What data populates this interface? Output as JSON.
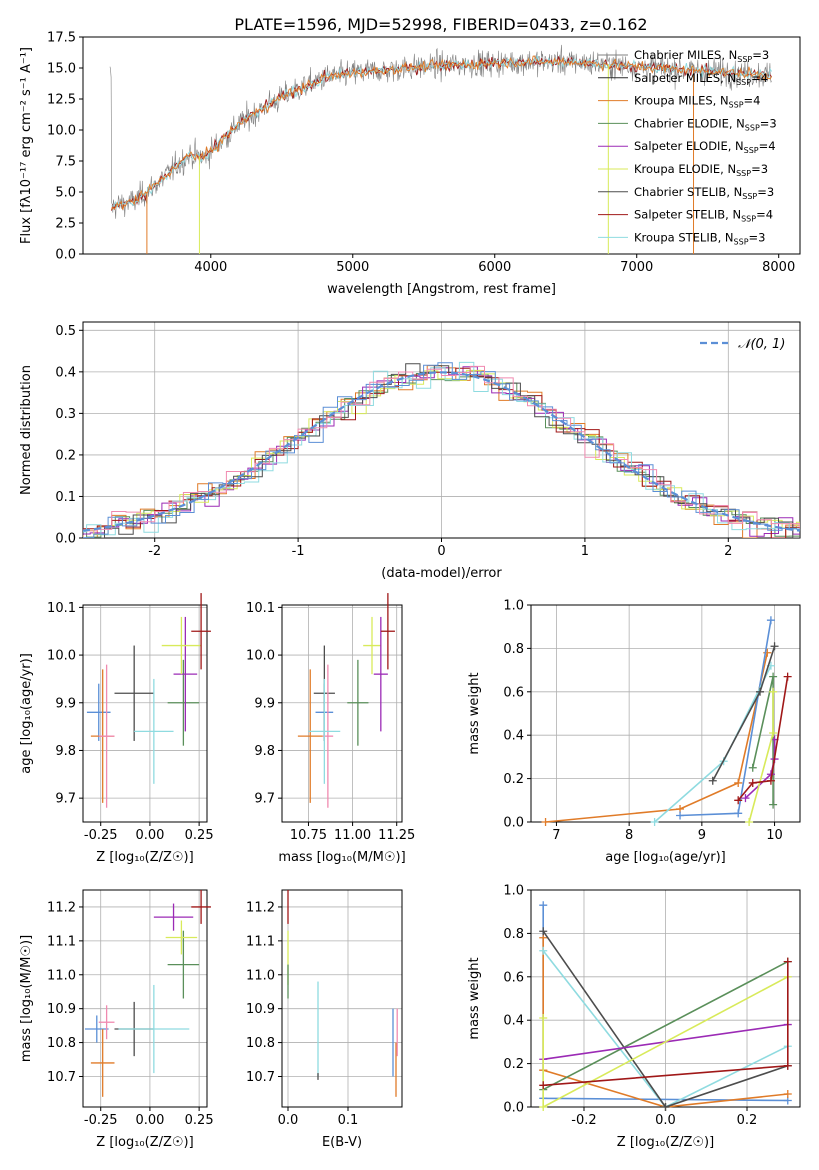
{
  "figure": {
    "title": "PLATE=1596, MJD=52998, FIBERID=0433, z=0.162"
  },
  "colors": {
    "chabrier_miles": "#808080",
    "salpeter_miles": "#2b2b2b",
    "kroupa_miles": "#e07b28",
    "chabrier_elodie": "#5a8f5a",
    "salpeter_elodie": "#9b2ab5",
    "kroupa_elodie": "#d8ea5a",
    "chabrier_stelib": "#4d4d4d",
    "salpeter_stelib": "#a01818",
    "kroupa_stelib": "#8fdbe0",
    "gauss": "#5b8fd6",
    "blue": "#5b8fd6",
    "pink": "#f08ab0",
    "grid": "#b0b0b0"
  },
  "chart_data": [
    {
      "id": "spectrum",
      "type": "line",
      "title": "PLATE=1596, MJD=52998, FIBERID=0433, z=0.162",
      "xlabel": "wavelength [Angstrom, rest frame]",
      "ylabel": "Flux [fλ10⁻¹⁷ erg cm⁻² s⁻¹ A⁻¹]",
      "xlim": [
        3100,
        8150
      ],
      "ylim": [
        0,
        17.5
      ],
      "xticks": [
        4000,
        5000,
        6000,
        7000,
        8000
      ],
      "yticks": [
        0.0,
        2.5,
        5.0,
        7.5,
        10.0,
        12.5,
        15.0,
        17.5
      ],
      "grid": false,
      "legend_position": "right",
      "continuum": {
        "x": [
          3300,
          3450,
          3550,
          3700,
          3850,
          3950,
          4050,
          4200,
          4400,
          4600,
          4800,
          5000,
          5200,
          5400,
          5600,
          5800,
          6000,
          6200,
          6500,
          6800,
          7000,
          7300,
          7600,
          7900
        ],
        "y": [
          3.8,
          4.2,
          5.0,
          6.5,
          8.0,
          7.8,
          8.8,
          10.5,
          12.0,
          13.2,
          14.2,
          14.6,
          14.8,
          15.0,
          15.2,
          15.3,
          15.4,
          15.5,
          15.5,
          15.3,
          15.1,
          14.9,
          14.7,
          14.4
        ]
      },
      "series": [
        {
          "name": "Chabrier MILES, N_SSP=3",
          "legend": "Chabrier MILES, N",
          "n": "=3",
          "color_key": "chabrier_miles"
        },
        {
          "name": "Salpeter MILES, N_SSP=4",
          "legend": "Salpeter MILES, N",
          "n": "=4",
          "color_key": "salpeter_miles"
        },
        {
          "name": "Kroupa MILES, N_SSP=4",
          "legend": "Kroupa MILES, N",
          "n": "=4",
          "color_key": "kroupa_miles"
        },
        {
          "name": "Chabrier ELODIE, N_SSP=3",
          "legend": "Chabrier ELODIE, N",
          "n": "=3",
          "color_key": "chabrier_elodie"
        },
        {
          "name": "Salpeter ELODIE, N_SSP=4",
          "legend": "Salpeter ELODIE, N",
          "n": "=4",
          "color_key": "salpeter_elodie"
        },
        {
          "name": "Kroupa ELODIE, N_SSP=3",
          "legend": "Kroupa ELODIE, N",
          "n": "=3",
          "color_key": "kroupa_elodie"
        },
        {
          "name": "Chabrier STELIB, N_SSP=3",
          "legend": "Chabrier STELIB, N",
          "n": "=3",
          "color_key": "chabrier_stelib"
        },
        {
          "name": "Salpeter STELIB, N_SSP=4",
          "legend": "Salpeter STELIB, N",
          "n": "=4",
          "color_key": "salpeter_stelib"
        },
        {
          "name": "Kroupa STELIB, N_SSP=3",
          "legend": "Kroupa STELIB, N",
          "n": "=3",
          "color_key": "kroupa_stelib"
        }
      ],
      "legend_sub": "SSP"
    },
    {
      "id": "residuals",
      "type": "line",
      "xlabel": "(data-model)/error",
      "ylabel": "Normed distribution",
      "xlim": [
        -2.5,
        2.5
      ],
      "ylim": [
        0,
        0.52
      ],
      "xticks": [
        -2,
        -1,
        0,
        1,
        2
      ],
      "yticks": [
        0.0,
        0.1,
        0.2,
        0.3,
        0.4,
        0.5
      ],
      "grid": true,
      "legend": {
        "name": "𝒩(0, 1)",
        "position": "top-right"
      }
    },
    {
      "id": "age_vs_Z",
      "type": "scatter",
      "xlabel": "Z [log₁₀(Z/Z☉)]",
      "ylabel": "age  [log₁₀(age/yr)]",
      "xlim": [
        -0.34,
        0.29
      ],
      "ylim": [
        9.65,
        10.105
      ],
      "xticks": [
        -0.25,
        0.0,
        0.25
      ],
      "yticks": [
        9.7,
        9.8,
        9.9,
        10.0,
        10.1
      ],
      "grid": true,
      "points": [
        {
          "color_key": "blue",
          "x": -0.26,
          "y": 9.88,
          "xerr": 0.06,
          "yerr": 0.06
        },
        {
          "color_key": "kroupa_miles",
          "x": -0.24,
          "y": 9.83,
          "xerr": 0.06,
          "yerr": 0.14
        },
        {
          "color_key": "pink",
          "x": -0.22,
          "y": 9.83,
          "xerr": 0.04,
          "yerr": 0.15
        },
        {
          "color_key": "chabrier_stelib",
          "x": -0.08,
          "y": 9.92,
          "xerr": 0.1,
          "yerr": 0.1
        },
        {
          "color_key": "kroupa_stelib",
          "x": 0.02,
          "y": 9.84,
          "xerr": 0.1,
          "yerr": 0.11
        },
        {
          "color_key": "chabrier_elodie",
          "x": 0.17,
          "y": 9.9,
          "xerr": 0.08,
          "yerr": 0.09
        },
        {
          "color_key": "salpeter_elodie",
          "x": 0.18,
          "y": 9.96,
          "xerr": 0.06,
          "yerr": 0.12
        },
        {
          "color_key": "kroupa_elodie",
          "x": 0.16,
          "y": 10.02,
          "xerr": 0.1,
          "yerr": 0.06
        },
        {
          "color_key": "salpeter_stelib",
          "x": 0.26,
          "y": 10.05,
          "xerr": 0.05,
          "yerr": 0.08
        }
      ]
    },
    {
      "id": "age_vs_mass",
      "type": "scatter",
      "xlabel": "mass [log₁₀(M/M☉)]",
      "xlim": [
        10.6,
        11.28
      ],
      "ylim": [
        9.65,
        10.105
      ],
      "xticks": [
        10.75,
        11.0,
        11.25
      ],
      "yticks": [
        9.7,
        9.8,
        9.9,
        10.0,
        10.1
      ],
      "grid": true,
      "points": [
        {
          "color_key": "kroupa_miles",
          "x": 10.76,
          "y": 9.83,
          "xerr": 0.07,
          "yerr": 0.14
        },
        {
          "color_key": "blue",
          "x": 10.84,
          "y": 9.88,
          "xerr": 0.05,
          "yerr": 0.06
        },
        {
          "color_key": "chabrier_stelib",
          "x": 10.84,
          "y": 9.92,
          "xerr": 0.06,
          "yerr": 0.1
        },
        {
          "color_key": "pink",
          "x": 10.86,
          "y": 9.83,
          "xerr": 0.03,
          "yerr": 0.15
        },
        {
          "color_key": "kroupa_stelib",
          "x": 10.84,
          "y": 9.84,
          "xerr": 0.09,
          "yerr": 0.11
        },
        {
          "color_key": "chabrier_elodie",
          "x": 11.03,
          "y": 9.9,
          "xerr": 0.06,
          "yerr": 0.09
        },
        {
          "color_key": "kroupa_elodie",
          "x": 11.11,
          "y": 10.02,
          "xerr": 0.05,
          "yerr": 0.06
        },
        {
          "color_key": "salpeter_elodie",
          "x": 11.16,
          "y": 9.96,
          "xerr": 0.04,
          "yerr": 0.12
        },
        {
          "color_key": "salpeter_stelib",
          "x": 11.2,
          "y": 10.05,
          "xerr": 0.04,
          "yerr": 0.08
        }
      ]
    },
    {
      "id": "weight_vs_age",
      "type": "line",
      "xlabel": "age  [log₁₀(age/yr)]",
      "ylabel": "mass weight",
      "xlim": [
        6.65,
        10.35
      ],
      "ylim": [
        0,
        1.0
      ],
      "xticks": [
        7,
        8,
        9,
        10
      ],
      "yticks": [
        0.0,
        0.2,
        0.4,
        0.6,
        0.8,
        1.0
      ],
      "grid": true,
      "series": [
        {
          "color_key": "kroupa_miles",
          "x": [
            6.85,
            8.7,
            9.5,
            9.9
          ],
          "y": [
            0.0,
            0.06,
            0.18,
            0.78
          ]
        },
        {
          "color_key": "blue",
          "x": [
            8.7,
            9.5,
            9.95
          ],
          "y": [
            0.03,
            0.04,
            0.93
          ]
        },
        {
          "color_key": "kroupa_stelib",
          "x": [
            8.35,
            9.3,
            9.95
          ],
          "y": [
            0.0,
            0.28,
            0.72
          ]
        },
        {
          "color_key": "chabrier_stelib",
          "x": [
            9.15,
            9.8,
            10.0
          ],
          "y": [
            0.19,
            0.6,
            0.81
          ]
        },
        {
          "color_key": "chabrier_elodie",
          "x": [
            9.7,
            9.98,
            9.98
          ],
          "y": [
            0.25,
            0.67,
            0.08
          ]
        },
        {
          "color_key": "salpeter_elodie",
          "x": [
            9.6,
            9.95,
            10.0,
            10.0
          ],
          "y": [
            0.11,
            0.22,
            0.29,
            0.38
          ]
        },
        {
          "color_key": "kroupa_elodie",
          "x": [
            9.65,
            9.98,
            9.98
          ],
          "y": [
            0.0,
            0.41,
            0.6
          ]
        },
        {
          "color_key": "salpeter_stelib",
          "x": [
            9.5,
            9.7,
            9.95,
            10.18
          ],
          "y": [
            0.1,
            0.18,
            0.19,
            0.67
          ]
        }
      ]
    },
    {
      "id": "mass_vs_Z",
      "type": "scatter",
      "xlabel": "Z [log₁₀(Z/Z☉)]",
      "ylabel": "mass [log₁₀(M/M☉)]",
      "xlim": [
        -0.34,
        0.29
      ],
      "ylim": [
        10.61,
        11.25
      ],
      "xticks": [
        -0.25,
        0.0,
        0.25
      ],
      "yticks": [
        10.7,
        10.8,
        10.9,
        11.0,
        11.1,
        11.2
      ],
      "grid": true,
      "points": [
        {
          "color_key": "blue",
          "x": -0.27,
          "y": 10.84,
          "xerr": 0.06,
          "yerr": 0.04
        },
        {
          "color_key": "kroupa_miles",
          "x": -0.24,
          "y": 10.74,
          "xerr": 0.06,
          "yerr": 0.1
        },
        {
          "color_key": "pink",
          "x": -0.22,
          "y": 10.86,
          "xerr": 0.04,
          "yerr": 0.05
        },
        {
          "color_key": "chabrier_stelib",
          "x": -0.08,
          "y": 10.84,
          "xerr": 0.1,
          "yerr": 0.08
        },
        {
          "color_key": "kroupa_stelib",
          "x": 0.02,
          "y": 10.84,
          "xerr": 0.18,
          "yerr": 0.13
        },
        {
          "color_key": "chabrier_elodie",
          "x": 0.17,
          "y": 11.03,
          "xerr": 0.08,
          "yerr": 0.1
        },
        {
          "color_key": "salpeter_elodie",
          "x": 0.12,
          "y": 11.17,
          "xerr": 0.1,
          "yerr": 0.04
        },
        {
          "color_key": "kroupa_elodie",
          "x": 0.16,
          "y": 11.11,
          "xerr": 0.08,
          "yerr": 0.05
        },
        {
          "color_key": "salpeter_stelib",
          "x": 0.26,
          "y": 11.2,
          "xerr": 0.05,
          "yerr": 0.05
        }
      ]
    },
    {
      "id": "mass_vs_EBV",
      "type": "scatter",
      "xlabel": "E(B-V)",
      "xlim": [
        -0.01,
        0.19
      ],
      "ylim": [
        10.61,
        11.25
      ],
      "xticks": [
        0.0,
        0.1
      ],
      "yticks": [
        10.7,
        10.8,
        10.9,
        11.0,
        11.1,
        11.2
      ],
      "grid": true,
      "points": [
        {
          "color_key": "salpeter_stelib",
          "x": 0.0,
          "y": 11.2,
          "xerr": 0.0,
          "yerr": 0.05
        },
        {
          "color_key": "kroupa_elodie",
          "x": 0.0,
          "y": 11.05,
          "xerr": 0.0,
          "yerr": 0.08
        },
        {
          "color_key": "chabrier_elodie",
          "x": 0.0,
          "y": 10.98,
          "xerr": 0.0,
          "yerr": 0.05
        },
        {
          "color_key": "kroupa_stelib",
          "x": 0.05,
          "y": 10.84,
          "xerr": 0.0,
          "yerr": 0.14
        },
        {
          "color_key": "chabrier_stelib",
          "x": 0.05,
          "y": 10.7,
          "xerr": 0.0,
          "yerr": 0.01
        },
        {
          "color_key": "blue",
          "x": 0.175,
          "y": 10.8,
          "xerr": 0.0,
          "yerr": 0.1
        },
        {
          "color_key": "kroupa_miles",
          "x": 0.18,
          "y": 10.72,
          "xerr": 0.0,
          "yerr": 0.08
        },
        {
          "color_key": "pink",
          "x": 0.182,
          "y": 10.83,
          "xerr": 0.0,
          "yerr": 0.07
        }
      ]
    },
    {
      "id": "weight_vs_Z",
      "type": "line",
      "xlabel": "Z [log₁₀(Z/Z☉)]",
      "ylabel": "mass weight",
      "xlim": [
        -0.33,
        0.33
      ],
      "ylim": [
        0,
        1.0
      ],
      "xticks": [
        -0.2,
        0.0,
        0.2
      ],
      "yticks": [
        0.0,
        0.2,
        0.4,
        0.6,
        0.8,
        1.0
      ],
      "grid": true,
      "series": [
        {
          "color_key": "blue",
          "x": [
            -0.3,
            -0.3,
            0.3
          ],
          "y": [
            0.93,
            0.04,
            0.03
          ]
        },
        {
          "color_key": "kroupa_miles",
          "x": [
            -0.3,
            -0.3,
            -0.3,
            0.0,
            0.3
          ],
          "y": [
            0.78,
            0.17,
            0.17,
            0.0,
            0.06
          ]
        },
        {
          "color_key": "kroupa_stelib",
          "x": [
            -0.3,
            0.0,
            0.3
          ],
          "y": [
            0.72,
            0.0,
            0.28
          ]
        },
        {
          "color_key": "chabrier_stelib",
          "x": [
            -0.3,
            0.0,
            0.3
          ],
          "y": [
            0.81,
            0.0,
            0.19
          ]
        },
        {
          "color_key": "chabrier_elodie",
          "x": [
            -0.3,
            0.3
          ],
          "y": [
            0.08,
            0.67
          ]
        },
        {
          "color_key": "salpeter_elodie",
          "x": [
            -0.3,
            0.3
          ],
          "y": [
            0.22,
            0.38
          ]
        },
        {
          "color_key": "kroupa_elodie",
          "x": [
            -0.3,
            -0.3,
            0.3
          ],
          "y": [
            0.41,
            0.0,
            0.6
          ]
        },
        {
          "color_key": "salpeter_stelib",
          "x": [
            -0.3,
            0.3,
            0.3
          ],
          "y": [
            0.1,
            0.19,
            0.67
          ]
        }
      ]
    }
  ]
}
